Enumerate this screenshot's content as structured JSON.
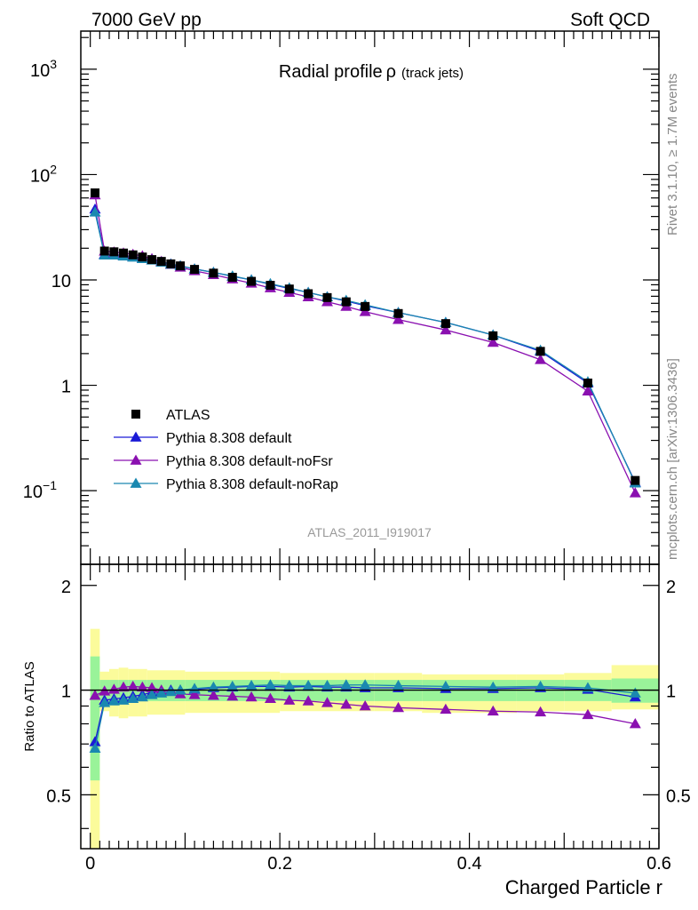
{
  "header": {
    "left": "7000 GeV pp",
    "right": "Soft QCD"
  },
  "side_labels": {
    "top": "Rivet 3.1.10, ≥ 1.7M events",
    "bottom": "mcplots.cern.ch [arXiv:1306.3436]"
  },
  "colors": {
    "ATLAS": "#000000",
    "default": "#1a1ad6",
    "noFsr": "#8a10b0",
    "noRap": "#1a88b0",
    "band_inner": "#99f399",
    "band_outer": "#fbfb9b"
  },
  "chart_data": [
    {
      "type": "line",
      "title": "Radial profile",
      "title_symbol": "ρ",
      "title_suffix": "(track jets)",
      "watermark": "ATLAS_2011_I919017",
      "yscale": "log",
      "xlim": [
        -0.01,
        0.6
      ],
      "ylim": [
        0.02,
        2300
      ],
      "y_ticks": [
        {
          "value": 0.1,
          "label": "10",
          "exp": "−1"
        },
        {
          "value": 1,
          "label": "1",
          "exp": ""
        },
        {
          "value": 10,
          "label": "10",
          "exp": ""
        },
        {
          "value": 100,
          "label": "10",
          "exp": "2"
        },
        {
          "value": 1000,
          "label": "10",
          "exp": "3"
        }
      ],
      "legend_position": "lower-left",
      "x": [
        0.005,
        0.015,
        0.025,
        0.035,
        0.045,
        0.055,
        0.065,
        0.075,
        0.085,
        0.095,
        0.11,
        0.13,
        0.15,
        0.17,
        0.19,
        0.21,
        0.23,
        0.25,
        0.27,
        0.29,
        0.325,
        0.375,
        0.425,
        0.475,
        0.525,
        0.575
      ],
      "series": [
        {
          "name": "ATLAS",
          "marker": "square",
          "values": [
            67,
            18.8,
            18.5,
            18.0,
            17.3,
            16.5,
            15.6,
            15.0,
            14.2,
            13.6,
            12.6,
            11.6,
            10.6,
            9.7,
            8.9,
            8.2,
            7.4,
            6.8,
            6.2,
            5.6,
            4.8,
            3.85,
            2.95,
            2.1,
            1.05,
            0.125
          ]
        },
        {
          "name": "Pythia 8.308 default",
          "marker": "triangle",
          "color_key": "default",
          "values": [
            47,
            17.5,
            17.4,
            17.0,
            16.6,
            16.1,
            15.5,
            14.8,
            14.2,
            13.6,
            12.7,
            11.8,
            10.8,
            10.0,
            9.1,
            8.3,
            7.6,
            6.9,
            6.3,
            5.7,
            4.9,
            3.95,
            3.0,
            2.1,
            1.05,
            0.12
          ]
        },
        {
          "name": "Pythia 8.308 default-noFsr",
          "marker": "triangle",
          "color_key": "noFsr",
          "values": [
            64,
            18.7,
            18.4,
            18.0,
            17.5,
            16.9,
            15.9,
            15.0,
            14.0,
            13.2,
            12.2,
            11.2,
            10.2,
            9.3,
            8.4,
            7.6,
            6.9,
            6.2,
            5.6,
            5.0,
            4.2,
            3.35,
            2.55,
            1.75,
            0.88,
            0.095
          ]
        },
        {
          "name": "Pythia 8.308 default-noRap",
          "marker": "triangle",
          "color_key": "noRap",
          "values": [
            44,
            17.2,
            17.2,
            16.8,
            16.4,
            15.9,
            15.4,
            14.7,
            14.1,
            13.6,
            12.7,
            11.8,
            10.9,
            10.0,
            9.2,
            8.4,
            7.6,
            6.9,
            6.4,
            5.8,
            4.9,
            3.95,
            3.0,
            2.15,
            1.08,
            0.118
          ]
        }
      ]
    },
    {
      "type": "line",
      "ylabel": "Ratio to ATLAS",
      "xlabel": "Charged Particle r",
      "xlim": [
        -0.01,
        0.6
      ],
      "ylim": [
        0.35,
        2.3
      ],
      "x_ticks": [
        "0",
        "0.2",
        "0.4",
        "0.6"
      ],
      "y_ticks": [
        "0.5",
        "1",
        "2"
      ],
      "bands": [
        {
          "x0": 0.0,
          "x1": 0.01,
          "inner": [
            0.55,
            1.25
          ],
          "outer": [
            0.35,
            1.5
          ]
        },
        {
          "x0": 0.01,
          "x1": 0.02,
          "inner": [
            0.93,
            1.07
          ],
          "outer": [
            0.87,
            1.13
          ]
        },
        {
          "x0": 0.02,
          "x1": 0.03,
          "inner": [
            0.93,
            1.07
          ],
          "outer": [
            0.84,
            1.15
          ]
        },
        {
          "x0": 0.03,
          "x1": 0.04,
          "inner": [
            0.93,
            1.07
          ],
          "outer": [
            0.83,
            1.16
          ]
        },
        {
          "x0": 0.04,
          "x1": 0.05,
          "inner": [
            0.93,
            1.07
          ],
          "outer": [
            0.84,
            1.15
          ]
        },
        {
          "x0": 0.05,
          "x1": 0.06,
          "inner": [
            0.93,
            1.07
          ],
          "outer": [
            0.84,
            1.15
          ]
        },
        {
          "x0": 0.06,
          "x1": 0.1,
          "inner": [
            0.93,
            1.07
          ],
          "outer": [
            0.85,
            1.14
          ]
        },
        {
          "x0": 0.1,
          "x1": 0.2,
          "inner": [
            0.93,
            1.07
          ],
          "outer": [
            0.86,
            1.13
          ]
        },
        {
          "x0": 0.2,
          "x1": 0.3,
          "inner": [
            0.93,
            1.07
          ],
          "outer": [
            0.87,
            1.12
          ]
        },
        {
          "x0": 0.3,
          "x1": 0.35,
          "inner": [
            0.93,
            1.07
          ],
          "outer": [
            0.87,
            1.12
          ]
        },
        {
          "x0": 0.35,
          "x1": 0.45,
          "inner": [
            0.93,
            1.07
          ],
          "outer": [
            0.86,
            1.11
          ]
        },
        {
          "x0": 0.45,
          "x1": 0.5,
          "inner": [
            0.93,
            1.07
          ],
          "outer": [
            0.87,
            1.11
          ]
        },
        {
          "x0": 0.5,
          "x1": 0.55,
          "inner": [
            0.93,
            1.07
          ],
          "outer": [
            0.87,
            1.12
          ]
        },
        {
          "x0": 0.55,
          "x1": 0.6,
          "inner": [
            0.92,
            1.08
          ],
          "outer": [
            0.88,
            1.18
          ]
        }
      ],
      "series": [
        {
          "name": "Pythia 8.308 default",
          "marker": "triangle",
          "color_key": "default",
          "values": [
            0.71,
            0.935,
            0.943,
            0.95,
            0.96,
            0.97,
            0.985,
            0.99,
            1.0,
            1.0,
            1.005,
            1.015,
            1.02,
            1.025,
            1.025,
            1.02,
            1.025,
            1.02,
            1.02,
            1.015,
            1.015,
            1.01,
            1.01,
            1.015,
            1.005,
            0.955
          ]
        },
        {
          "name": "Pythia 8.308 default-noFsr",
          "marker": "triangle",
          "color_key": "noFsr",
          "values": [
            0.965,
            0.993,
            1.005,
            1.02,
            1.025,
            1.02,
            1.015,
            1.0,
            0.99,
            0.975,
            0.97,
            0.965,
            0.96,
            0.955,
            0.945,
            0.935,
            0.93,
            0.92,
            0.91,
            0.9,
            0.89,
            0.88,
            0.87,
            0.865,
            0.85,
            0.8
          ]
        },
        {
          "name": "Pythia 8.308 default-noRap",
          "marker": "triangle",
          "color_key": "noRap",
          "values": [
            0.68,
            0.92,
            0.93,
            0.935,
            0.945,
            0.955,
            0.97,
            0.98,
            0.99,
            1.0,
            1.01,
            1.02,
            1.025,
            1.03,
            1.035,
            1.03,
            1.03,
            1.03,
            1.035,
            1.035,
            1.03,
            1.025,
            1.02,
            1.025,
            1.015,
            0.98
          ]
        }
      ]
    }
  ]
}
